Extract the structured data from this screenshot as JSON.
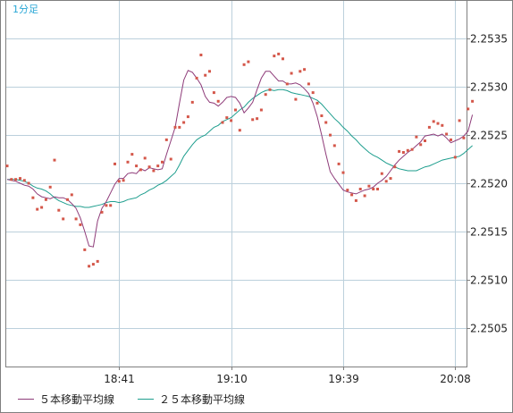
{
  "chart_data": {
    "type": "line",
    "timeframe_label": "1分足",
    "x_ticks": [
      "18:41",
      "19:10",
      "19:39",
      "20:08"
    ],
    "y_ticks": [
      "2.2535",
      "2.2530",
      "2.2525",
      "2.2520",
      "2.2515",
      "2.2510",
      "2.2505"
    ],
    "ylim": [
      2.2501,
      2.2539
    ],
    "grid": true,
    "legend_position": "bottom",
    "colors": {
      "ma5": "#8e3b79",
      "ma25": "#1e9e8e",
      "price": "#d4574a",
      "grid": "#bcd0dc",
      "label": "#29a7d6"
    },
    "points": [
      2.25218,
      2.25204,
      2.25204,
      2.25205,
      2.25203,
      2.252,
      2.25185,
      2.25173,
      2.25175,
      2.25183,
      2.25196,
      2.25224,
      2.25172,
      2.25163,
      2.25183,
      2.25188,
      2.25163,
      2.25157,
      2.25131,
      2.25114,
      2.25116,
      2.25119,
      2.2517,
      2.25177,
      2.25177,
      2.2522,
      2.25202,
      2.25203,
      2.25222,
      2.2523,
      2.25218,
      2.25214,
      2.25226,
      2.25217,
      2.25213,
      2.25218,
      2.25222,
      2.25245,
      2.25225,
      2.25258,
      2.25258,
      2.25263,
      2.25269,
      2.25284,
      2.25309,
      2.25333,
      2.25312,
      2.25316,
      2.25294,
      2.25285,
      2.25263,
      2.25268,
      2.25265,
      2.25276,
      2.25255,
      2.25323,
      2.25326,
      2.25266,
      2.25267,
      2.25276,
      2.25292,
      2.25297,
      2.25332,
      2.25334,
      2.25329,
      2.25303,
      2.25314,
      2.25287,
      2.25316,
      2.25318,
      2.25303,
      2.25294,
      2.25283,
      2.2527,
      2.25263,
      2.2525,
      2.25239,
      2.2522,
      2.25211,
      2.25193,
      2.25188,
      2.25182,
      2.25194,
      2.25187,
      2.25197,
      2.25194,
      2.25194,
      2.2521,
      2.25202,
      2.25205,
      2.25217,
      2.25233,
      2.25232,
      2.25234,
      2.25235,
      2.25248,
      2.2524,
      2.25244,
      2.25258,
      2.25264,
      2.25262,
      2.2526,
      2.25251,
      2.25245,
      2.25227,
      2.25265,
      2.25247,
      2.25277,
      2.25285
    ],
    "series": [
      {
        "name": "５本移動平均線",
        "values": [
          2.25204,
          2.25203,
          2.25202,
          2.252,
          2.25198,
          2.25197,
          2.25194,
          2.25189,
          2.25186,
          2.25185,
          2.25184,
          2.25186,
          2.25185,
          2.25185,
          2.25183,
          2.25179,
          2.25174,
          2.25164,
          2.2515,
          2.25135,
          2.25134,
          2.25161,
          2.25174,
          2.25181,
          2.2519,
          2.25199,
          2.25205,
          2.25205,
          2.2521,
          2.25211,
          2.2521,
          2.25215,
          2.25213,
          2.25216,
          2.25215,
          2.25214,
          2.25215,
          2.2523,
          2.25244,
          2.25258,
          2.25283,
          2.25307,
          2.25317,
          2.25315,
          2.25309,
          2.25302,
          2.2529,
          2.25284,
          2.25283,
          2.2528,
          2.25284,
          2.25289,
          2.2529,
          2.25289,
          2.25283,
          2.25273,
          2.25278,
          2.25284,
          2.25297,
          2.25309,
          2.25316,
          2.25316,
          2.25311,
          2.25306,
          2.25306,
          2.25303,
          2.25303,
          2.25304,
          2.25302,
          2.25298,
          2.25293,
          2.25283,
          2.25269,
          2.2525,
          2.2523,
          2.25212,
          2.25205,
          2.25199,
          2.25193,
          2.25191,
          2.2519,
          2.25189,
          2.25191,
          2.25193,
          2.25194,
          2.25196,
          2.252,
          2.25203,
          2.25207,
          2.25213,
          2.25219,
          2.25224,
          2.25228,
          2.25232,
          2.25235,
          2.25239,
          2.25243,
          2.25249,
          2.2525,
          2.25251,
          2.25249,
          2.25251,
          2.25247,
          2.25242,
          2.25244,
          2.25246,
          2.25249,
          2.25254,
          2.25271
        ]
      },
      {
        "name": "２５本移動平均線",
        "values": [
          2.25204,
          2.25204,
          2.25204,
          2.25203,
          2.25202,
          2.252,
          2.25197,
          2.25195,
          2.25194,
          2.25192,
          2.25189,
          2.25185,
          2.25182,
          2.2518,
          2.25178,
          2.25177,
          2.25176,
          2.25176,
          2.25175,
          2.25175,
          2.25176,
          2.25177,
          2.25178,
          2.2518,
          2.25181,
          2.25181,
          2.2518,
          2.25181,
          2.25183,
          2.25184,
          2.25185,
          2.25188,
          2.2519,
          2.25193,
          2.25195,
          2.25198,
          2.252,
          2.25203,
          2.25207,
          2.25211,
          2.25219,
          2.25228,
          2.25234,
          2.2524,
          2.25245,
          2.25248,
          2.2525,
          2.25254,
          2.25258,
          2.2526,
          2.25264,
          2.25266,
          2.25268,
          2.25272,
          2.25276,
          2.25279,
          2.25284,
          2.25288,
          2.25291,
          2.25294,
          2.25296,
          2.25297,
          2.25296,
          2.25297,
          2.25297,
          2.25296,
          2.25294,
          2.25293,
          2.25292,
          2.25291,
          2.2529,
          2.25288,
          2.25286,
          2.25282,
          2.25277,
          2.25272,
          2.25267,
          2.25263,
          2.25258,
          2.25254,
          2.25249,
          2.25245,
          2.2524,
          2.25236,
          2.25232,
          2.25229,
          2.25227,
          2.25224,
          2.25221,
          2.25219,
          2.25217,
          2.25215,
          2.25214,
          2.25213,
          2.25213,
          2.25213,
          2.25215,
          2.25217,
          2.25218,
          2.2522,
          2.25222,
          2.25224,
          2.25225,
          2.25226,
          2.25227,
          2.25228,
          2.25231,
          2.25235,
          2.25239
        ]
      }
    ]
  }
}
